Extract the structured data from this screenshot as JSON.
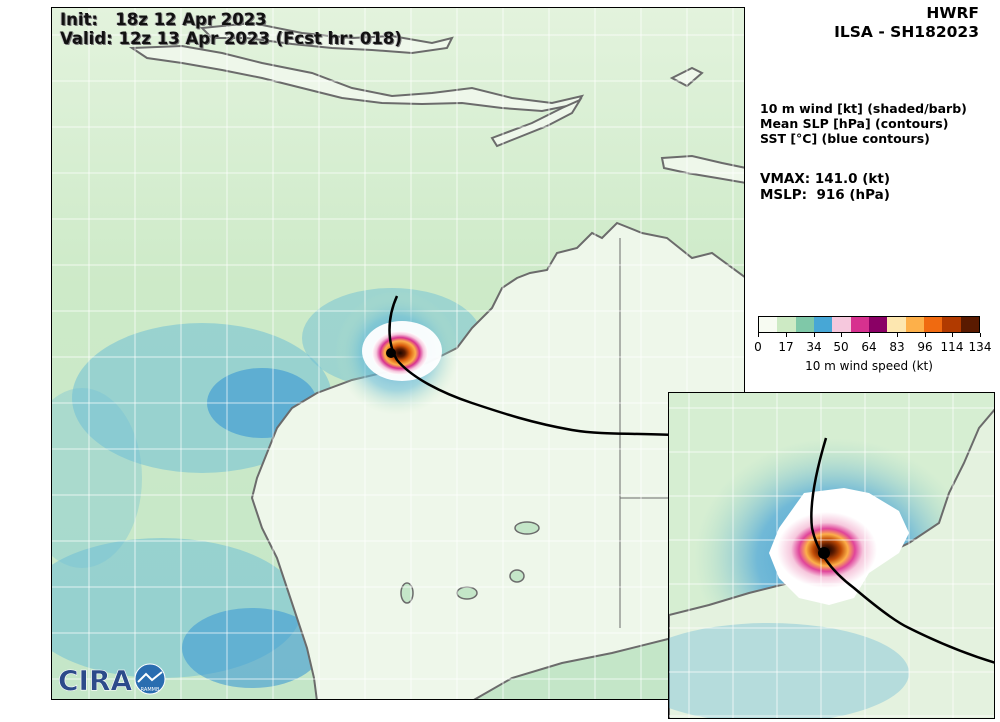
{
  "header": {
    "model": "HWRF",
    "storm": "ILSA - SH182023",
    "init": "Init:   18z 12 Apr 2023",
    "valid": "Valid: 12z 13 Apr 2023 (Fcst hr: 018)"
  },
  "description": {
    "line1": "10 m wind [kt] (shaded/barb)",
    "line2": "Mean SLP [hPa] (contours)",
    "line3": "SST [°C] (blue contours)"
  },
  "stats": {
    "vmax": "VMAX: 141.0 (kt)",
    "mslp": "MSLP:  916 (hPa)"
  },
  "colorbar": {
    "label": "10 m wind speed (kt)",
    "ticks": [
      "0",
      "17",
      "34",
      "50",
      "64",
      "83",
      "96",
      "114",
      "134"
    ],
    "colors": [
      "#f7fbf2",
      "#cdeac4",
      "#7fc8a8",
      "#47a7d6",
      "#f6c8dd",
      "#d7318f",
      "#8a0065",
      "#fde7b0",
      "#fdb04a",
      "#f06a10",
      "#b13a00",
      "#5a1a00"
    ]
  },
  "logo": {
    "text": "CIRA",
    "badge": "RAMMB"
  },
  "map": {
    "land_color": "#eaf5e4",
    "sea_light": "#c9e7c5",
    "sea_medium": "#6fbfd6",
    "sea_strong": "#3f9bd4",
    "coast_color": "#6b6b6b",
    "track_color": "#000000"
  }
}
